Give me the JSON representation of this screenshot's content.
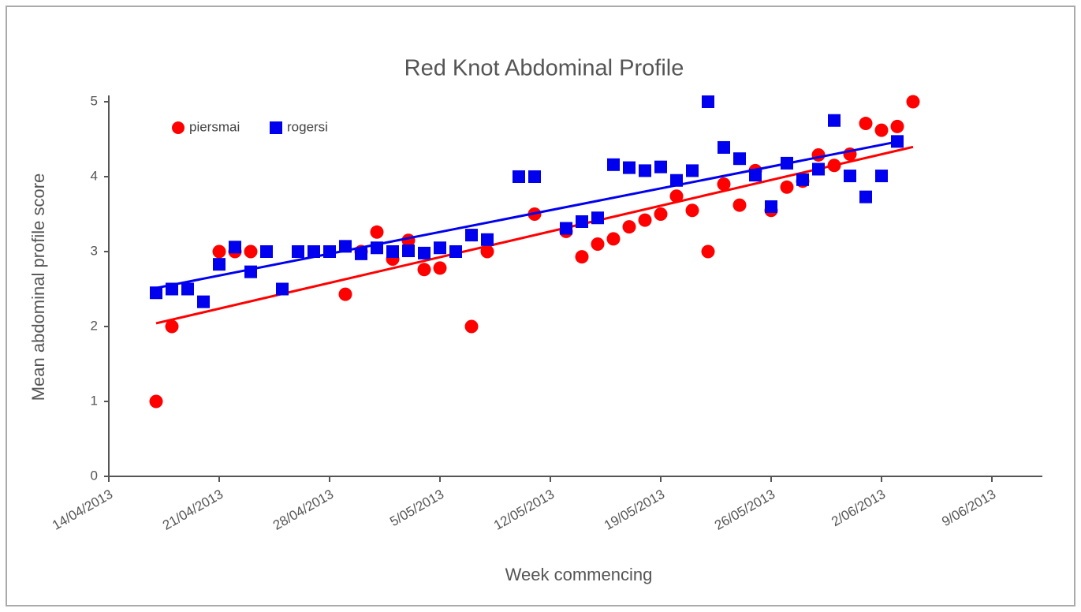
{
  "chart_data": {
    "type": "scatter",
    "title": "Red Knot Abdominal Profile",
    "xlabel": "Week commencing",
    "ylabel": "Mean abdominal profile score",
    "xlim": [
      "2013-04-14",
      "2013-06-12"
    ],
    "xticks": [
      {
        "value": "2013-04-14",
        "label": "14/04/2013"
      },
      {
        "value": "2013-04-21",
        "label": "21/04/2013"
      },
      {
        "value": "2013-04-28",
        "label": "28/04/2013"
      },
      {
        "value": "2013-05-05",
        "label": "5/05/2013"
      },
      {
        "value": "2013-05-12",
        "label": "12/05/2013"
      },
      {
        "value": "2013-05-19",
        "label": "19/05/2013"
      },
      {
        "value": "2013-05-26",
        "label": "26/05/2013"
      },
      {
        "value": "2013-06-02",
        "label": "2/06/2013"
      },
      {
        "value": "2013-06-09",
        "label": "9/06/2013"
      }
    ],
    "ylim": [
      0,
      5
    ],
    "yticks": [
      0,
      1,
      2,
      3,
      4,
      5
    ],
    "grid": false,
    "trendline": true,
    "legend": "upper left",
    "series": [
      {
        "name": "piersmai",
        "color": "#ff0000",
        "marker": "circle",
        "x": [
          "2013-04-17",
          "2013-04-18",
          "2013-04-21",
          "2013-04-22",
          "2013-04-23",
          "2013-04-29",
          "2013-04-30",
          "2013-05-01",
          "2013-05-02",
          "2013-05-03",
          "2013-05-04",
          "2013-05-05",
          "2013-05-07",
          "2013-05-08",
          "2013-05-11",
          "2013-05-13",
          "2013-05-14",
          "2013-05-15",
          "2013-05-16",
          "2013-05-17",
          "2013-05-18",
          "2013-05-19",
          "2013-05-20",
          "2013-05-21",
          "2013-05-22",
          "2013-05-23",
          "2013-05-24",
          "2013-05-25",
          "2013-05-26",
          "2013-05-27",
          "2013-05-28",
          "2013-05-29",
          "2013-05-30",
          "2013-05-31",
          "2013-06-01",
          "2013-06-02",
          "2013-06-03",
          "2013-06-04"
        ],
        "values": [
          1.0,
          2.0,
          3.0,
          3.0,
          3.0,
          2.43,
          3.0,
          3.26,
          2.9,
          3.15,
          2.76,
          2.78,
          2.0,
          3.0,
          3.5,
          3.27,
          2.93,
          3.1,
          3.17,
          3.33,
          3.42,
          3.5,
          3.74,
          3.55,
          3.0,
          3.9,
          3.62,
          4.08,
          3.55,
          3.86,
          3.94,
          4.29,
          4.15,
          4.3,
          4.71,
          4.62,
          4.67,
          5.0
        ]
      },
      {
        "name": "rogersi",
        "color": "#0000ee",
        "marker": "square",
        "x": [
          "2013-04-17",
          "2013-04-18",
          "2013-04-19",
          "2013-04-20",
          "2013-04-21",
          "2013-04-22",
          "2013-04-23",
          "2013-04-24",
          "2013-04-25",
          "2013-04-26",
          "2013-04-27",
          "2013-04-28",
          "2013-04-29",
          "2013-04-30",
          "2013-05-01",
          "2013-05-02",
          "2013-05-03",
          "2013-05-04",
          "2013-05-05",
          "2013-05-06",
          "2013-05-07",
          "2013-05-08",
          "2013-05-10",
          "2013-05-11",
          "2013-05-13",
          "2013-05-14",
          "2013-05-15",
          "2013-05-16",
          "2013-05-17",
          "2013-05-18",
          "2013-05-19",
          "2013-05-20",
          "2013-05-21",
          "2013-05-22",
          "2013-05-23",
          "2013-05-24",
          "2013-05-25",
          "2013-05-26",
          "2013-05-27",
          "2013-05-28",
          "2013-05-29",
          "2013-05-30",
          "2013-05-31",
          "2013-06-01",
          "2013-06-02",
          "2013-06-03"
        ],
        "values": [
          2.45,
          2.5,
          2.5,
          2.33,
          2.83,
          3.06,
          2.73,
          3.0,
          2.5,
          3.0,
          3.0,
          3.0,
          3.07,
          2.97,
          3.05,
          3.0,
          3.01,
          2.98,
          3.05,
          3.0,
          3.22,
          3.16,
          4.0,
          4.0,
          3.31,
          3.4,
          3.45,
          4.16,
          4.12,
          4.08,
          4.13,
          3.95,
          4.08,
          5.0,
          4.39,
          4.24,
          4.02,
          3.6,
          4.18,
          3.96,
          4.1,
          4.75,
          4.01,
          3.73,
          4.01,
          4.47
        ]
      }
    ]
  }
}
